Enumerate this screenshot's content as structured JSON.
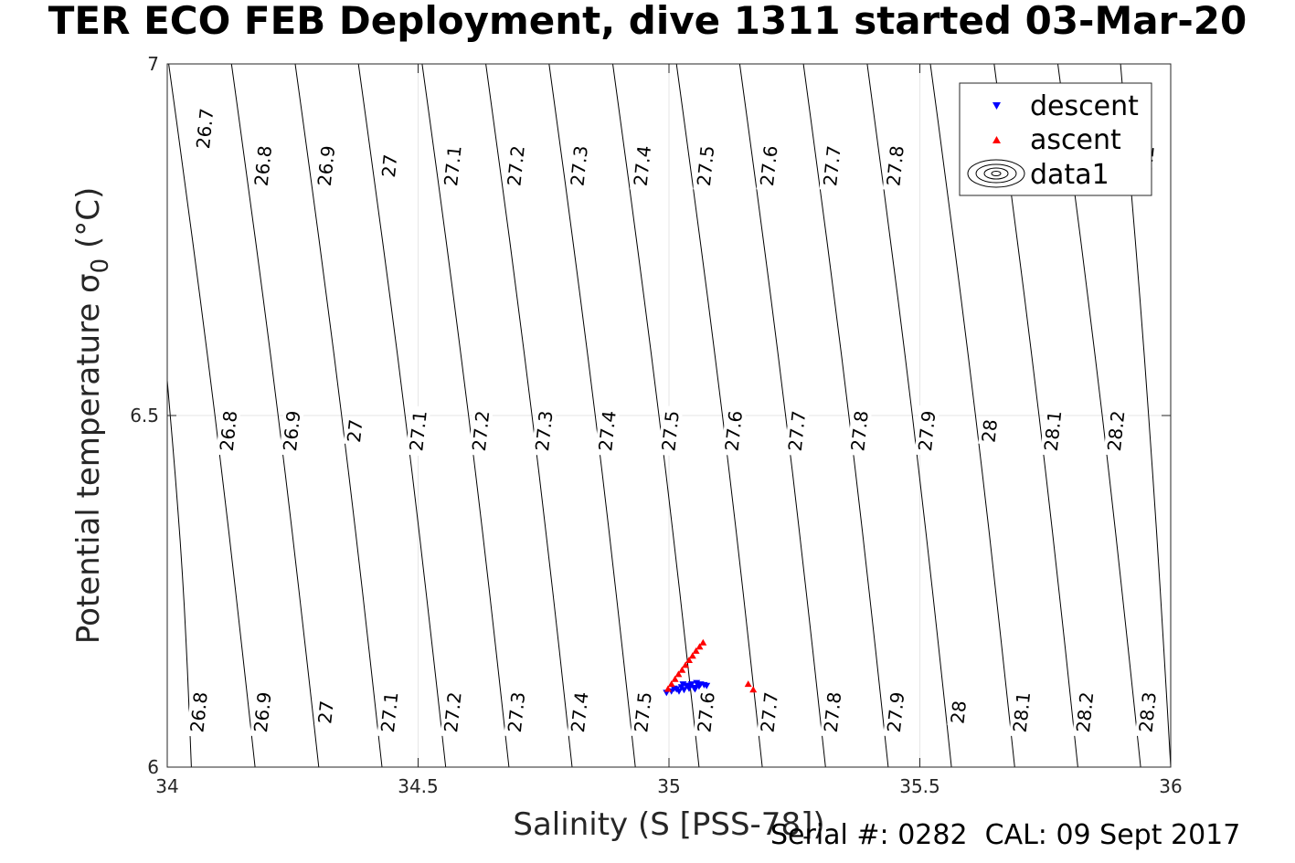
{
  "chart_data": {
    "type": "scatter",
    "title": "TER ECO FEB Deployment, dive 1311 started 03-Mar-20",
    "xlabel": "Salinity (S [PSS-78])",
    "ylabel": "Potential temperature σ",
    "ylabel_subscript": "0",
    "ylabel_unit": " (°C)",
    "xlim": [
      34,
      36
    ],
    "ylim": [
      6,
      7
    ],
    "xticks": [
      "34",
      "34.5",
      "35",
      "35.5",
      "36"
    ],
    "yticks": [
      "6",
      "6.5",
      "7"
    ],
    "grid": true,
    "legend": {
      "position": "top-right",
      "entries": [
        "descent",
        "ascent",
        "data1"
      ]
    },
    "colors": {
      "descent": "#0000ff",
      "ascent": "#ff0000",
      "contour": "#000000",
      "grid": "#e6e6e6"
    },
    "series": [
      {
        "name": "descent",
        "marker": "triangle-down",
        "points": [
          [
            34.995,
            6.106
          ],
          [
            35.005,
            6.108
          ],
          [
            35.015,
            6.111
          ],
          [
            35.02,
            6.108
          ],
          [
            35.025,
            6.114
          ],
          [
            35.03,
            6.11
          ],
          [
            35.035,
            6.116
          ],
          [
            35.04,
            6.112
          ],
          [
            35.045,
            6.118
          ],
          [
            35.05,
            6.113
          ],
          [
            35.055,
            6.12
          ],
          [
            35.06,
            6.115
          ],
          [
            35.063,
            6.118
          ],
          [
            35.07,
            6.117
          ],
          [
            35.075,
            6.116
          ],
          [
            35.01,
            6.112
          ],
          [
            35.028,
            6.118
          ],
          [
            35.042,
            6.116
          ],
          [
            35.052,
            6.111
          ]
        ]
      },
      {
        "name": "ascent",
        "marker": "triangle-up",
        "points": [
          [
            34.998,
            6.111
          ],
          [
            35.005,
            6.118
          ],
          [
            35.012,
            6.125
          ],
          [
            35.019,
            6.132
          ],
          [
            35.026,
            6.138
          ],
          [
            35.033,
            6.145
          ],
          [
            35.04,
            6.152
          ],
          [
            35.047,
            6.158
          ],
          [
            35.054,
            6.165
          ],
          [
            35.061,
            6.171
          ],
          [
            35.068,
            6.177
          ],
          [
            35.158,
            6.118
          ],
          [
            35.168,
            6.11
          ]
        ]
      }
    ],
    "contours": {
      "name": "data1",
      "lines": [
        {
          "x_bottom": 34.048,
          "x_top": 34.0,
          "y_top": 6.55
        },
        {
          "x_bottom": 34.175,
          "x_top": 34.003,
          "y_top": 7.0
        },
        {
          "x_bottom": 34.302,
          "x_top": 34.128,
          "y_top": 7.0
        },
        {
          "x_bottom": 34.428,
          "x_top": 34.255,
          "y_top": 7.0
        },
        {
          "x_bottom": 34.555,
          "x_top": 34.381,
          "y_top": 7.0
        },
        {
          "x_bottom": 34.681,
          "x_top": 34.508,
          "y_top": 7.0
        },
        {
          "x_bottom": 34.807,
          "x_top": 34.635,
          "y_top": 7.0
        },
        {
          "x_bottom": 34.933,
          "x_top": 34.761,
          "y_top": 7.0
        },
        {
          "x_bottom": 35.06,
          "x_top": 34.888,
          "y_top": 7.0
        },
        {
          "x_bottom": 35.186,
          "x_top": 35.015,
          "y_top": 7.0
        },
        {
          "x_bottom": 35.312,
          "x_top": 35.141,
          "y_top": 7.0
        },
        {
          "x_bottom": 35.437,
          "x_top": 35.268,
          "y_top": 7.0
        },
        {
          "x_bottom": 35.563,
          "x_top": 35.395,
          "y_top": 7.0
        },
        {
          "x_bottom": 35.689,
          "x_top": 35.521,
          "y_top": 7.0
        },
        {
          "x_bottom": 35.815,
          "x_top": 35.648,
          "y_top": 7.0
        },
        {
          "x_bottom": 35.94,
          "x_top": 35.775,
          "y_top": 7.0
        },
        {
          "x_bottom": 36.0,
          "x_top": 35.9,
          "y_top": 7.0
        }
      ],
      "labels": [
        {
          "text": "26.7",
          "x": 34.075,
          "y": 6.908
        },
        {
          "text": "26.8",
          "x": 34.191,
          "y": 6.855
        },
        {
          "text": "26.9",
          "x": 34.317,
          "y": 6.855
        },
        {
          "text": "27",
          "x": 34.443,
          "y": 6.855
        },
        {
          "text": "27.1",
          "x": 34.569,
          "y": 6.855
        },
        {
          "text": "27.2",
          "x": 34.695,
          "y": 6.855
        },
        {
          "text": "27.3",
          "x": 34.821,
          "y": 6.855
        },
        {
          "text": "27.4",
          "x": 34.947,
          "y": 6.855
        },
        {
          "text": "27.5",
          "x": 35.073,
          "y": 6.855
        },
        {
          "text": "27.6",
          "x": 35.199,
          "y": 6.855
        },
        {
          "text": "27.7",
          "x": 35.325,
          "y": 6.855
        },
        {
          "text": "27.8",
          "x": 35.451,
          "y": 6.855
        },
        {
          "text": "28.2",
          "x": 35.95,
          "y": 6.855
        },
        {
          "text": "26.8",
          "x": 34.122,
          "y": 6.478
        },
        {
          "text": "26.9",
          "x": 34.248,
          "y": 6.478
        },
        {
          "text": "27",
          "x": 34.374,
          "y": 6.478
        },
        {
          "text": "27.1",
          "x": 34.5,
          "y": 6.478
        },
        {
          "text": "27.2",
          "x": 34.625,
          "y": 6.478
        },
        {
          "text": "27.3",
          "x": 34.751,
          "y": 6.478
        },
        {
          "text": "27.4",
          "x": 34.877,
          "y": 6.478
        },
        {
          "text": "27.5",
          "x": 35.003,
          "y": 6.478
        },
        {
          "text": "27.6",
          "x": 35.129,
          "y": 6.478
        },
        {
          "text": "27.7",
          "x": 35.255,
          "y": 6.478
        },
        {
          "text": "27.8",
          "x": 35.38,
          "y": 6.478
        },
        {
          "text": "27.9",
          "x": 35.514,
          "y": 6.478
        },
        {
          "text": "28",
          "x": 35.639,
          "y": 6.478
        },
        {
          "text": "28.1",
          "x": 35.765,
          "y": 6.478
        },
        {
          "text": "28.2",
          "x": 35.891,
          "y": 6.478
        },
        {
          "text": "26.8",
          "x": 34.063,
          "y": 6.078
        },
        {
          "text": "26.9",
          "x": 34.19,
          "y": 6.078
        },
        {
          "text": "27",
          "x": 34.316,
          "y": 6.078
        },
        {
          "text": "27.1",
          "x": 34.443,
          "y": 6.078
        },
        {
          "text": "27.2",
          "x": 34.569,
          "y": 6.078
        },
        {
          "text": "27.3",
          "x": 34.696,
          "y": 6.078
        },
        {
          "text": "27.4",
          "x": 34.822,
          "y": 6.078
        },
        {
          "text": "27.5",
          "x": 34.948,
          "y": 6.078
        },
        {
          "text": "27.6",
          "x": 35.074,
          "y": 6.078
        },
        {
          "text": "27.7",
          "x": 35.2,
          "y": 6.078
        },
        {
          "text": "27.8",
          "x": 35.326,
          "y": 6.078
        },
        {
          "text": "27.9",
          "x": 35.452,
          "y": 6.078
        },
        {
          "text": "28",
          "x": 35.577,
          "y": 6.078
        },
        {
          "text": "28.1",
          "x": 35.703,
          "y": 6.078
        },
        {
          "text": "28.2",
          "x": 35.829,
          "y": 6.078
        },
        {
          "text": "28.3",
          "x": 35.954,
          "y": 6.078
        }
      ]
    }
  },
  "footer": "Serial #: 0282  CAL: 09 Sept 2017"
}
